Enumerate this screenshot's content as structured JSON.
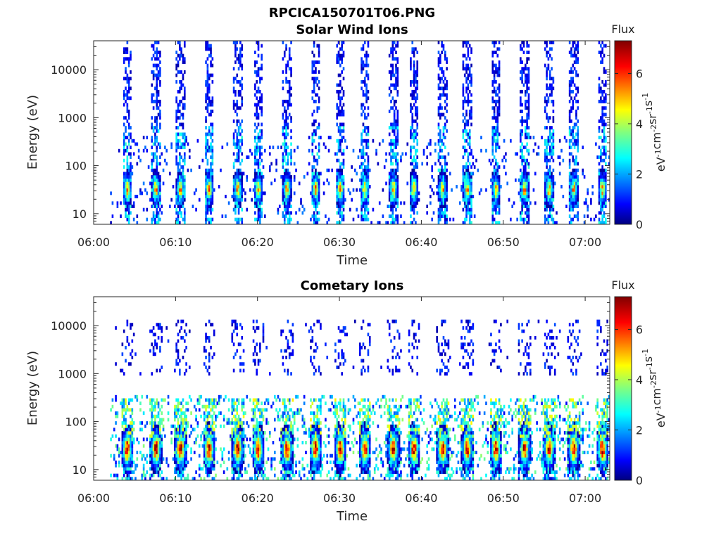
{
  "figure": {
    "title": "RPCICA150701T06.PNG"
  },
  "colorbar": {
    "label": "Flux",
    "units_parts": [
      "eV",
      "-1",
      "cm",
      "-2",
      "sr",
      "-1",
      "s",
      "-1"
    ],
    "range": [
      0,
      7.3
    ],
    "ticks": [
      0,
      2,
      4,
      6
    ],
    "colormap": "jet"
  },
  "chart_data": [
    {
      "type": "heatmap",
      "title": "Solar Wind Ions",
      "xlabel": "Time",
      "ylabel": "Energy (eV)",
      "yscale": "log",
      "xlim": [
        "06:00",
        "07:03"
      ],
      "ylim": [
        6,
        40000
      ],
      "xticks": [
        "06:00",
        "06:10",
        "06:20",
        "06:30",
        "06:40",
        "06:50",
        "07:00"
      ],
      "yticks": [
        10,
        100,
        1000,
        10000
      ],
      "ytick_labels": [
        "10",
        "100",
        "1000",
        "10000"
      ],
      "data_start": "06:02",
      "scan_period_min": 3.2,
      "sweep_centers": [
        "06:04",
        "06:07:30",
        "06:10:30",
        "06:14",
        "06:17:30",
        "06:20",
        "06:23:30",
        "06:27",
        "06:30",
        "06:33",
        "06:36:30",
        "06:39",
        "06:42:30",
        "06:45:30",
        "06:49",
        "06:52:30",
        "06:55:30",
        "06:58:30",
        "07:02"
      ],
      "peak_energy_eV": 30,
      "peak_flux": 5.5,
      "low_energy_background": "scattered 0.5–3 flux counts from 6 to 1000 eV",
      "high_energy_background": "sparse 0.3–1.5 flux counts from 1000 to 40000 eV"
    },
    {
      "type": "heatmap",
      "title": "Cometary Ions",
      "xlabel": "Time",
      "ylabel": "Energy (eV)",
      "yscale": "log",
      "xlim": [
        "06:00",
        "07:03"
      ],
      "ylim": [
        6,
        40000
      ],
      "xticks": [
        "06:00",
        "06:10",
        "06:20",
        "06:30",
        "06:40",
        "06:50",
        "07:00"
      ],
      "yticks": [
        10,
        100,
        1000,
        10000
      ],
      "ytick_labels": [
        "10",
        "100",
        "1000",
        "10000"
      ],
      "data_start": "06:02",
      "scan_period_min": 3.2,
      "sweep_centers": [
        "06:04",
        "06:07:30",
        "06:10:30",
        "06:14",
        "06:17:30",
        "06:20",
        "06:23:30",
        "06:27",
        "06:30",
        "06:33",
        "06:36:30",
        "06:39",
        "06:42:30",
        "06:45:30",
        "06:49",
        "06:52:30",
        "06:55:30",
        "06:58:30",
        "07:02"
      ],
      "peak_energy_eV": 25,
      "peak_flux": 7,
      "secondary_band_eV": [
        40,
        300
      ],
      "high_energy_background": "sparse 0.3–1.5 flux counts from 1000 to 12000 eV"
    }
  ]
}
